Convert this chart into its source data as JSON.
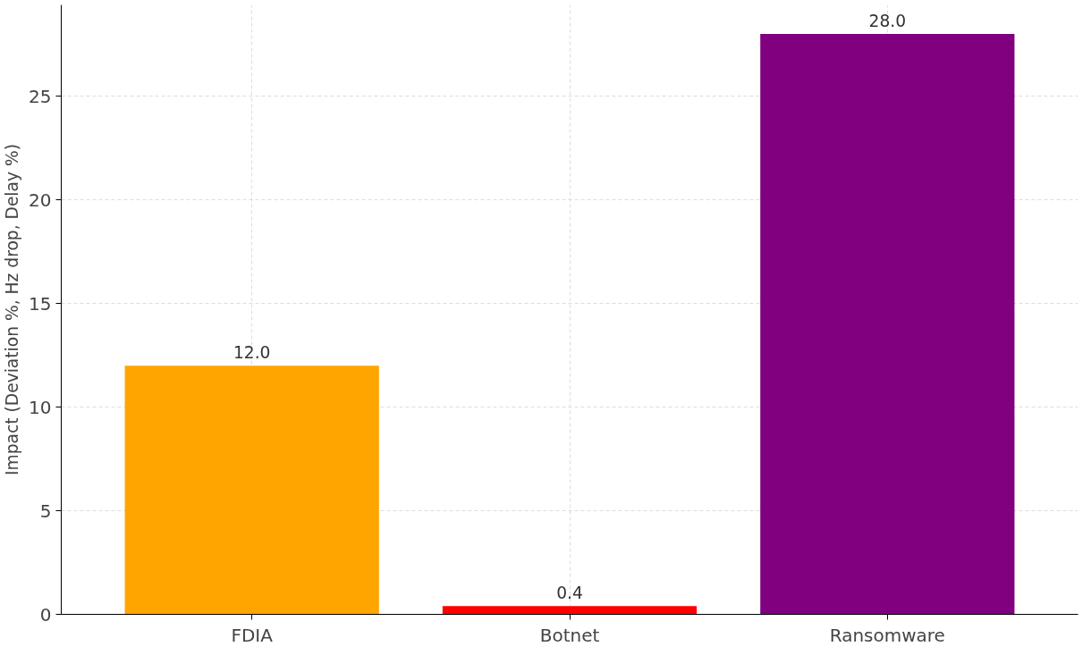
{
  "chart_data": {
    "type": "bar",
    "ylabel": "Impact (Deviation %, Hz drop, Delay %)",
    "categories": [
      "FDIA",
      "Botnet",
      "Ransomware"
    ],
    "values": [
      12.0,
      0.4,
      28.0
    ],
    "colors": [
      "#ffa500",
      "#ff0000",
      "#800080"
    ],
    "ylim": [
      0,
      29.4
    ],
    "yticks": [
      0,
      5,
      10,
      15,
      20,
      25
    ],
    "value_labels": [
      "12.0",
      "0.4",
      "28.0"
    ],
    "grid": true
  }
}
